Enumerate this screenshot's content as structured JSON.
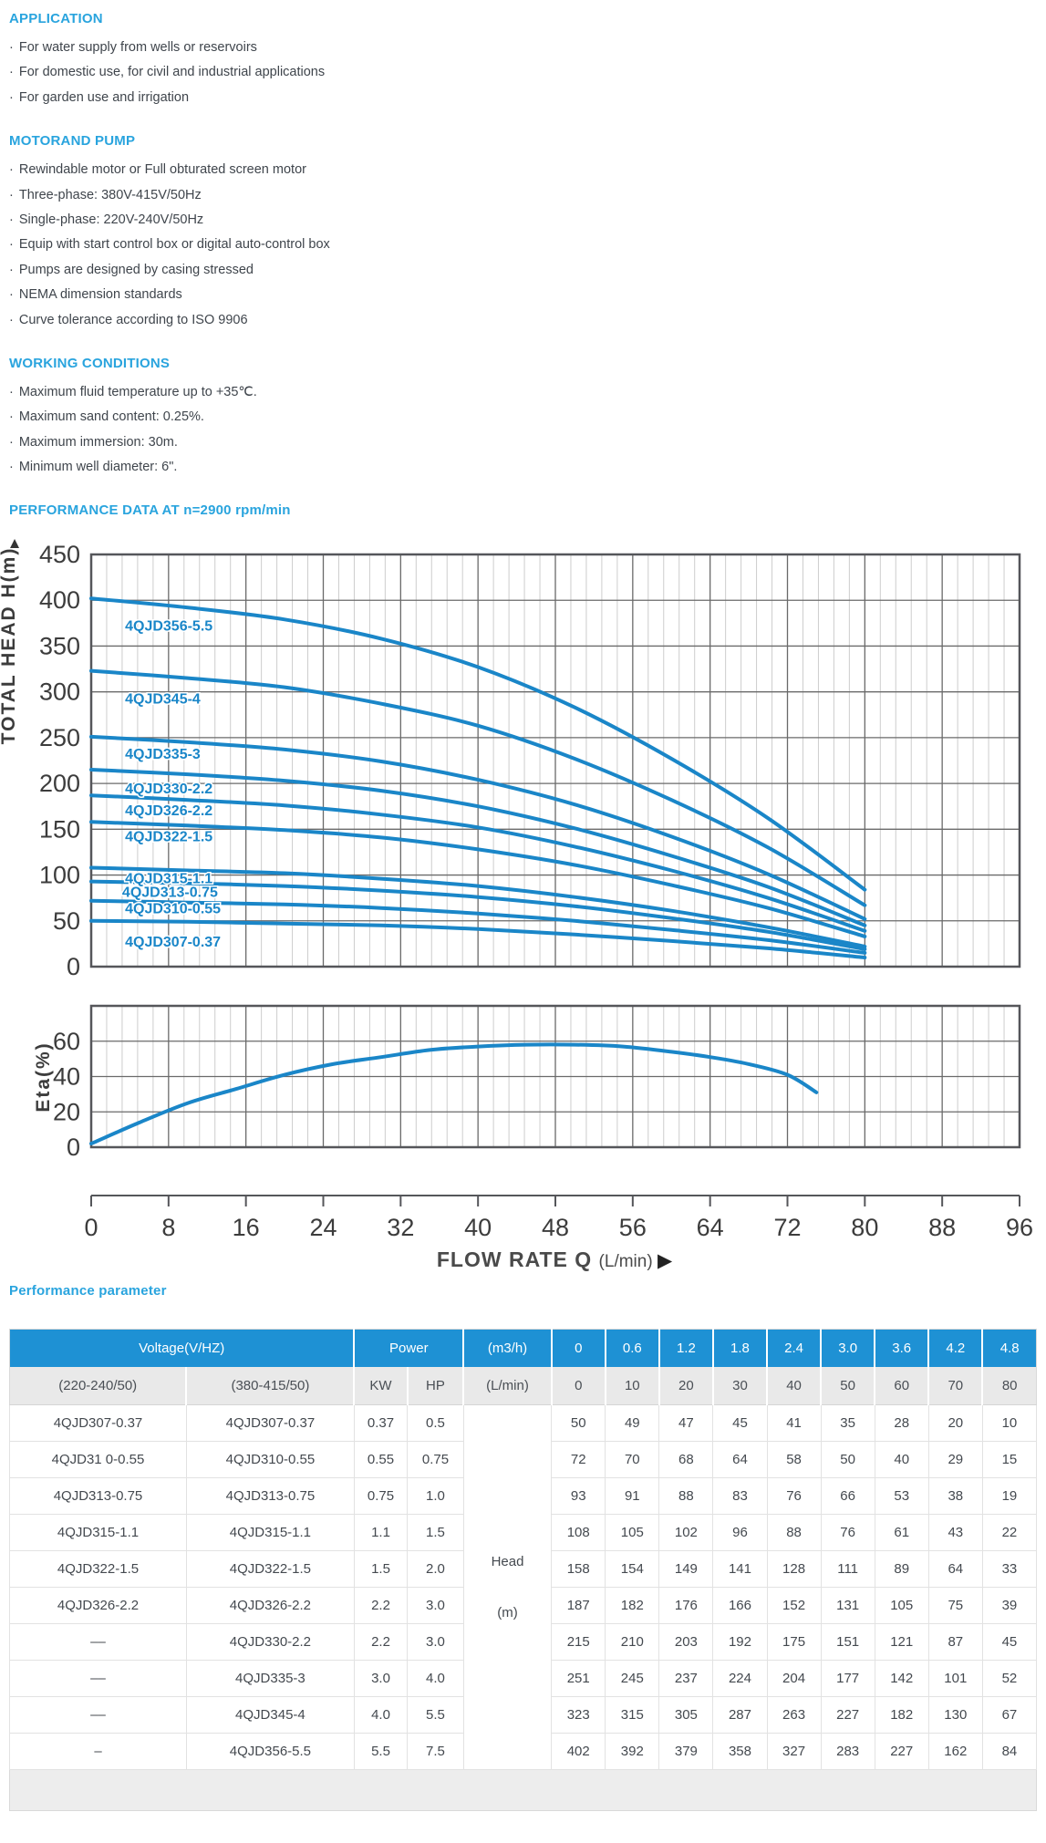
{
  "accent_color": "#29a4de",
  "table_header_color": "#1e91d4",
  "curve_color": "#1a86c8",
  "sections": [
    {
      "title": "APPLICATION",
      "items": [
        "For water supply from wells or reservoirs",
        "For domestic use, for civil and industrial applications",
        "For garden use and irrigation"
      ]
    },
    {
      "title": "MOTORAND PUMP",
      "items": [
        "Rewindable motor or Full obturated screen motor",
        "Three-phase: 380V-415V/50Hz",
        "Single-phase: 220V-240V/50Hz",
        "Equip with start control box or digital auto-control box",
        "Pumps are designed by casing stressed",
        "NEMA dimension standards",
        "Curve tolerance according to ISO 9906"
      ]
    },
    {
      "title": "WORKING CONDITIONS",
      "items": [
        "Maximum fluid temperature up to +35℃.",
        "Maximum sand content: 0.25%.",
        "Maximum immersion: 30m.",
        "Minimum well diameter: 6\"."
      ]
    }
  ],
  "performance_heading": "PERFORMANCE DATA AT n=2900 rpm/min",
  "chart_data": [
    {
      "type": "line",
      "title": "PERFORMANCE DATA AT n=2900 rpm/min",
      "xlabel": "FLOW RATE Q",
      "x_unit": "(L/min)",
      "ylabel": "TOTAL HEAD H(m)",
      "xlim": [
        0,
        96
      ],
      "ylim": [
        0,
        450
      ],
      "x_ticks": [
        0,
        8,
        16,
        24,
        32,
        40,
        48,
        56,
        64,
        72,
        80,
        88,
        96
      ],
      "y_ticks": [
        0,
        50,
        100,
        150,
        200,
        250,
        300,
        350,
        400,
        450
      ],
      "grid": "major vertical+horizontal, minor vertical",
      "legend_position": "labels-on-curves",
      "x": [
        0,
        10,
        20,
        30,
        40,
        50,
        60,
        70,
        80
      ],
      "series": [
        {
          "name": "4QJD356-5.5",
          "values": [
            402,
            392,
            379,
            358,
            327,
            283,
            227,
            162,
            84
          ],
          "label_at": [
            3.5,
            372
          ]
        },
        {
          "name": "4QJD345-4",
          "values": [
            323,
            315,
            305,
            287,
            263,
            227,
            182,
            130,
            67
          ],
          "label_at": [
            3.5,
            292
          ]
        },
        {
          "name": "4QJD335-3",
          "values": [
            251,
            245,
            237,
            224,
            204,
            177,
            142,
            101,
            52
          ],
          "label_at": [
            3.5,
            232
          ]
        },
        {
          "name": "4QJD330-2.2",
          "values": [
            215,
            210,
            203,
            192,
            175,
            151,
            121,
            87,
            45
          ],
          "label_at": [
            3.5,
            194
          ]
        },
        {
          "name": "4QJD326-2.2",
          "values": [
            187,
            182,
            176,
            166,
            152,
            131,
            105,
            75,
            39
          ],
          "label_at": [
            3.5,
            170
          ]
        },
        {
          "name": "4QJD322-1.5",
          "values": [
            158,
            154,
            149,
            141,
            128,
            111,
            89,
            64,
            33
          ],
          "label_at": [
            3.5,
            142
          ]
        },
        {
          "name": "4QJD315-1.1",
          "values": [
            108,
            105,
            102,
            96,
            88,
            76,
            61,
            43,
            22
          ],
          "label_at": [
            3.5,
            96
          ]
        },
        {
          "name": "4QJD313-0.75",
          "values": [
            93,
            91,
            88,
            83,
            76,
            66,
            53,
            38,
            19
          ],
          "label_at": [
            3.2,
            81
          ]
        },
        {
          "name": "4QJD310-0.55",
          "values": [
            72,
            70,
            68,
            64,
            58,
            50,
            40,
            29,
            15
          ],
          "label_at": [
            3.5,
            63
          ]
        },
        {
          "name": "4QJD307-0.37",
          "values": [
            50,
            49,
            47,
            45,
            41,
            35,
            28,
            20,
            10
          ],
          "label_at": [
            3.5,
            27
          ]
        }
      ]
    },
    {
      "type": "line",
      "ylabel": "Eta(%)",
      "xlim": [
        0,
        96
      ],
      "ylim": [
        0,
        80
      ],
      "y_ticks": [
        0,
        20,
        40,
        60
      ],
      "series": [
        {
          "name": "Eta",
          "points": [
            [
              0,
              2
            ],
            [
              5,
              14
            ],
            [
              10,
              25
            ],
            [
              15,
              33
            ],
            [
              20,
              41
            ],
            [
              25,
              47
            ],
            [
              30,
              51
            ],
            [
              35,
              55
            ],
            [
              40,
              57
            ],
            [
              45,
              58
            ],
            [
              50,
              58
            ],
            [
              55,
              57
            ],
            [
              60,
              54
            ],
            [
              64,
              51
            ],
            [
              68,
              47
            ],
            [
              72,
              41
            ],
            [
              75,
              31
            ]
          ]
        }
      ]
    }
  ],
  "table_heading": "Performance parameter",
  "table": {
    "header_row1": [
      {
        "label": "Voltage(V/HZ)",
        "colspan": 2
      },
      {
        "label": "Power",
        "colspan": 2
      },
      {
        "label": "(m3/h)"
      },
      {
        "label": "0"
      },
      {
        "label": "0.6"
      },
      {
        "label": "1.2"
      },
      {
        "label": "1.8"
      },
      {
        "label": "2.4"
      },
      {
        "label": "3.0"
      },
      {
        "label": "3.6"
      },
      {
        "label": "4.2"
      },
      {
        "label": "4.8"
      }
    ],
    "header_row2": [
      "(220-240/50)",
      "(380-415/50)",
      "KW",
      "HP",
      "(L/min)",
      "0",
      "10",
      "20",
      "30",
      "40",
      "50",
      "60",
      "70",
      "80"
    ],
    "row_label_cell": {
      "line1": "Head",
      "line2": "(m)"
    },
    "rows": [
      {
        "model_220v": "4QJD307-0.37",
        "model_380v": "4QJD307-0.37",
        "kw": "0.37",
        "hp": "0.5",
        "head_m": [
          50,
          49,
          47,
          45,
          41,
          35,
          28,
          20,
          10
        ]
      },
      {
        "model_220v": "4QJD31 0-0.55",
        "model_380v": "4QJD310-0.55",
        "kw": "0.55",
        "hp": "0.75",
        "head_m": [
          72,
          70,
          68,
          64,
          58,
          50,
          40,
          29,
          15
        ]
      },
      {
        "model_220v": "4QJD313-0.75",
        "model_380v": "4QJD313-0.75",
        "kw": "0.75",
        "hp": "1.0",
        "head_m": [
          93,
          91,
          88,
          83,
          76,
          66,
          53,
          38,
          19
        ]
      },
      {
        "model_220v": "4QJD315-1.1",
        "model_380v": "4QJD315-1.1",
        "kw": "1.1",
        "hp": "1.5",
        "head_m": [
          108,
          105,
          102,
          96,
          88,
          76,
          61,
          43,
          22
        ]
      },
      {
        "model_220v": "4QJD322-1.5",
        "model_380v": "4QJD322-1.5",
        "kw": "1.5",
        "hp": "2.0",
        "head_m": [
          158,
          154,
          149,
          141,
          128,
          111,
          89,
          64,
          33
        ]
      },
      {
        "model_220v": "4QJD326-2.2",
        "model_380v": "4QJD326-2.2",
        "kw": "2.2",
        "hp": "3.0",
        "head_m": [
          187,
          182,
          176,
          166,
          152,
          131,
          105,
          75,
          39
        ]
      },
      {
        "model_220v": "––",
        "model_380v": "4QJD330-2.2",
        "kw": "2.2",
        "hp": "3.0",
        "head_m": [
          215,
          210,
          203,
          192,
          175,
          151,
          121,
          87,
          45
        ]
      },
      {
        "model_220v": "––",
        "model_380v": "4QJD335-3",
        "kw": "3.0",
        "hp": "4.0",
        "head_m": [
          251,
          245,
          237,
          224,
          204,
          177,
          142,
          101,
          52
        ]
      },
      {
        "model_220v": "––",
        "model_380v": "4QJD345-4",
        "kw": "4.0",
        "hp": "5.5",
        "head_m": [
          323,
          315,
          305,
          287,
          263,
          227,
          182,
          130,
          67
        ]
      },
      {
        "model_220v": "–",
        "model_380v": "4QJD356-5.5",
        "kw": "5.5",
        "hp": "7.5",
        "head_m": [
          402,
          392,
          379,
          358,
          327,
          283,
          227,
          162,
          84
        ]
      }
    ]
  }
}
